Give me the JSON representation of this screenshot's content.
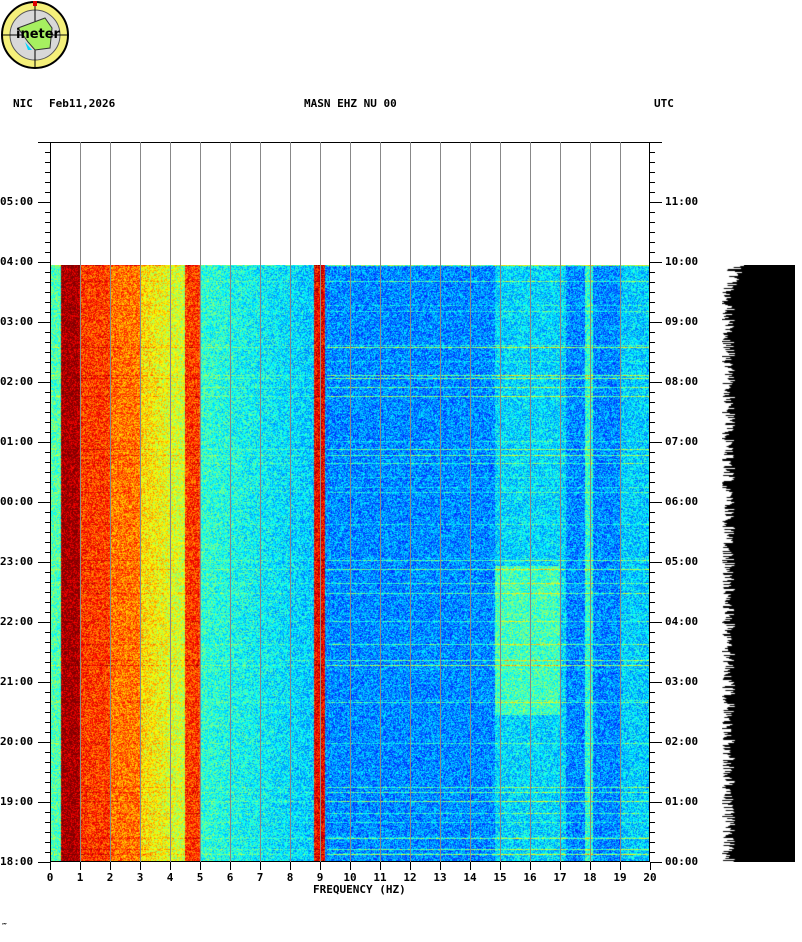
{
  "header": {
    "network": "NIC",
    "date": "Feb11,2026",
    "channel": "MASN EHZ NU 00",
    "timezone": "UTC"
  },
  "logo": {
    "text": "ineter"
  },
  "footer_mark": "‴",
  "chart_data": {
    "type": "heatmap",
    "title": "MASN EHZ NU 00",
    "xlabel": "FREQUENCY (HZ)",
    "xlim": [
      0,
      20
    ],
    "x_ticks": [
      "0",
      "1",
      "2",
      "3",
      "4",
      "5",
      "6",
      "7",
      "8",
      "9",
      "10",
      "11",
      "12",
      "13",
      "14",
      "15",
      "16",
      "17",
      "18",
      "19",
      "20"
    ],
    "left_y_ticks": [
      "05:00",
      "04:00",
      "03:00",
      "02:00",
      "01:00",
      "00:00",
      "23:00",
      "22:00",
      "21:00",
      "20:00",
      "19:00",
      "18:00"
    ],
    "right_y_ticks": [
      "11:00",
      "10:00",
      "09:00",
      "08:00",
      "07:00",
      "06:00",
      "05:00",
      "04:00",
      "03:00",
      "02:00",
      "01:00",
      "00:00"
    ],
    "data_start_time": "18:00",
    "data_end_time": "04:00",
    "colormap": "jet",
    "features": [
      {
        "freq_hz": [
          0.4,
          1.0
        ],
        "level": "very high"
      },
      {
        "freq_hz": [
          1.0,
          4.5
        ],
        "level": "high"
      },
      {
        "freq_hz": [
          4.5,
          5.0
        ],
        "level": "very high"
      },
      {
        "freq_hz": [
          5.0,
          8.8
        ],
        "level": "medium"
      },
      {
        "freq_hz": [
          8.9,
          9.1
        ],
        "level": "very high"
      },
      {
        "freq_hz": [
          9.1,
          20
        ],
        "level": "low"
      },
      {
        "freq_hz": [
          17.8,
          18.1
        ],
        "level": "medium"
      }
    ]
  }
}
